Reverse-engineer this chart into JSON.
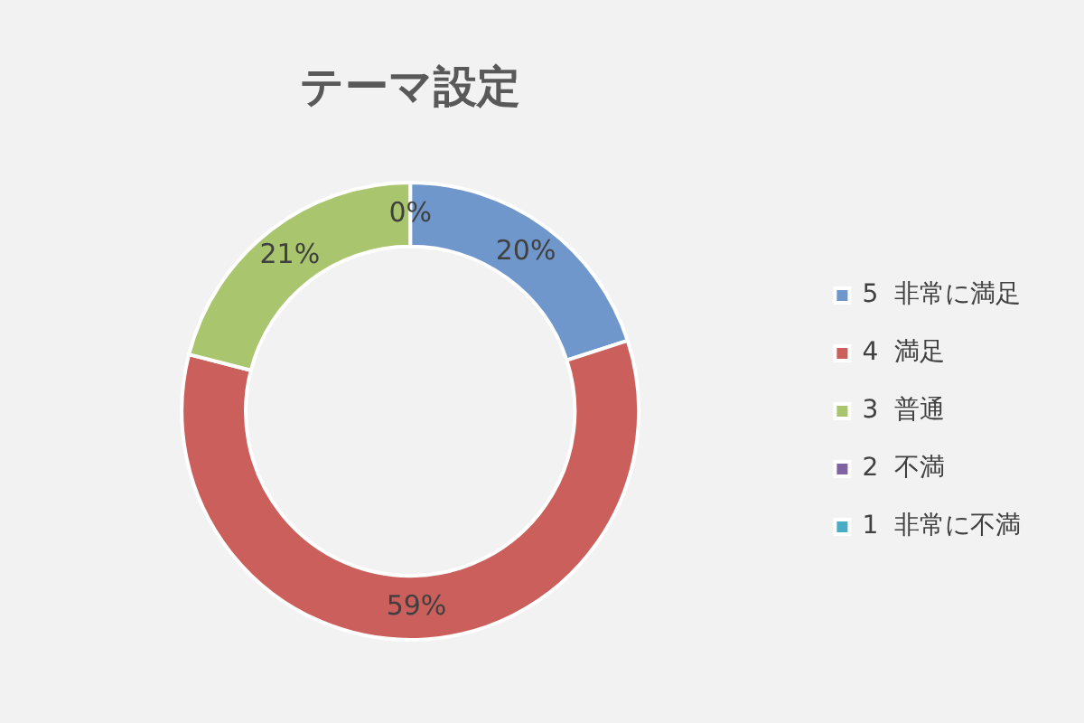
{
  "chart_data": {
    "type": "donut",
    "title": "テーマ設定",
    "categories": [
      "5  非常に満足",
      "4  満足",
      "3  普通",
      "2  不満",
      "1  非常に不満"
    ],
    "values": [
      20,
      59,
      21,
      0,
      0
    ],
    "colors": [
      "#6f97cc",
      "#cb5f5c",
      "#a9c56e",
      "#8064a2",
      "#4bacc6"
    ],
    "value_labels": [
      "20%",
      "59%",
      "21%",
      "0%",
      null
    ],
    "legend": "right"
  }
}
